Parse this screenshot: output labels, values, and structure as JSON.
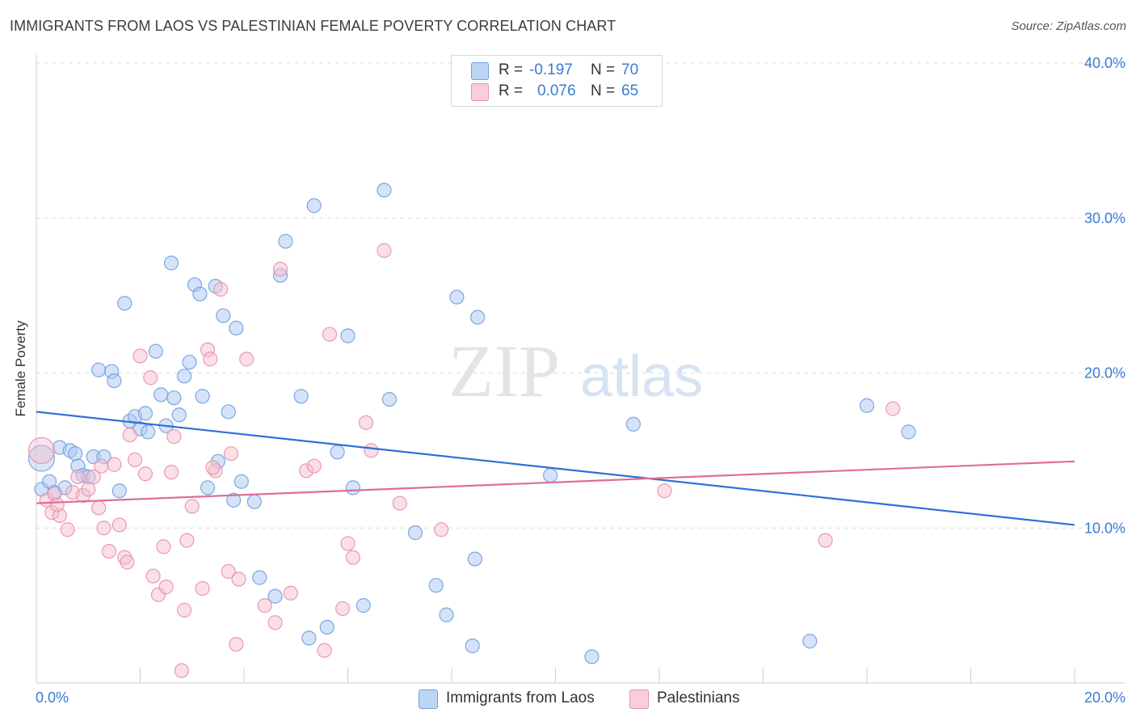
{
  "title": "IMMIGRANTS FROM LAOS VS PALESTINIAN FEMALE POVERTY CORRELATION CHART",
  "source": "Source: ZipAtlas.com",
  "watermark": {
    "zip": "ZIP",
    "atlas": "atlas"
  },
  "colors": {
    "blue_fill": "#a9c8f0",
    "blue_stroke": "#6f9fe0",
    "blue_line": "#2f6fd6",
    "pink_fill": "#f6bfd0",
    "pink_stroke": "#e88fae",
    "pink_line": "#e06c98",
    "value_text": "#3a7bd5",
    "grid": "#dedede"
  },
  "stats": [
    {
      "r_label": "R =",
      "r_value": "-0.197",
      "n_label": "N =",
      "n_value": "70"
    },
    {
      "r_label": "R =",
      "r_value": "0.076",
      "n_label": "N =",
      "n_value": "65"
    }
  ],
  "legend": [
    "Immigrants from Laos",
    "Palestinians"
  ],
  "chart_data": {
    "type": "scatter",
    "title": "IMMIGRANTS FROM LAOS VS PALESTINIAN FEMALE POVERTY CORRELATION CHART",
    "xlabel": "",
    "ylabel": "Female Poverty",
    "xlim": [
      0,
      20
    ],
    "ylim": [
      0,
      40
    ],
    "x_tick_labels": [
      "0.0%",
      "20.0%"
    ],
    "y_ticks": [
      10,
      20,
      30,
      40
    ],
    "y_tick_labels": [
      "10.0%",
      "20.0%",
      "30.0%",
      "40.0%"
    ],
    "x_minor_ticks": [
      2,
      4,
      6,
      8,
      10,
      12,
      14,
      16,
      18,
      20
    ],
    "grid": true,
    "legend_position": "bottom-center",
    "series": [
      {
        "name": "Immigrants from Laos",
        "color": "blue",
        "trend": {
          "x": [
            0,
            20
          ],
          "y": [
            17.5,
            10.2
          ]
        },
        "points": [
          [
            0.1,
            14.5
          ],
          [
            0.1,
            12.5
          ],
          [
            0.25,
            13.0
          ],
          [
            0.35,
            12.3
          ],
          [
            0.45,
            15.2
          ],
          [
            0.55,
            12.6
          ],
          [
            0.65,
            15.0
          ],
          [
            0.75,
            14.8
          ],
          [
            0.8,
            14.0
          ],
          [
            0.9,
            13.4
          ],
          [
            1.0,
            13.3
          ],
          [
            1.1,
            14.6
          ],
          [
            1.2,
            20.2
          ],
          [
            1.3,
            14.6
          ],
          [
            1.45,
            20.1
          ],
          [
            1.5,
            19.5
          ],
          [
            1.6,
            12.4
          ],
          [
            1.7,
            24.5
          ],
          [
            1.8,
            16.9
          ],
          [
            1.9,
            17.2
          ],
          [
            2.0,
            16.4
          ],
          [
            2.1,
            17.4
          ],
          [
            2.15,
            16.2
          ],
          [
            2.3,
            21.4
          ],
          [
            2.4,
            18.6
          ],
          [
            2.5,
            16.6
          ],
          [
            2.6,
            27.1
          ],
          [
            2.65,
            18.4
          ],
          [
            2.75,
            17.3
          ],
          [
            2.85,
            19.8
          ],
          [
            2.95,
            20.7
          ],
          [
            3.05,
            25.7
          ],
          [
            3.15,
            25.1
          ],
          [
            3.2,
            18.5
          ],
          [
            3.3,
            12.6
          ],
          [
            3.45,
            25.6
          ],
          [
            3.5,
            14.3
          ],
          [
            3.6,
            23.7
          ],
          [
            3.7,
            17.5
          ],
          [
            3.8,
            11.8
          ],
          [
            3.85,
            22.9
          ],
          [
            3.95,
            13.0
          ],
          [
            4.2,
            11.7
          ],
          [
            4.3,
            6.8
          ],
          [
            4.6,
            5.6
          ],
          [
            4.7,
            26.3
          ],
          [
            4.8,
            28.5
          ],
          [
            5.1,
            18.5
          ],
          [
            5.25,
            2.9
          ],
          [
            5.35,
            30.8
          ],
          [
            5.6,
            3.6
          ],
          [
            5.8,
            14.9
          ],
          [
            6.0,
            22.4
          ],
          [
            6.1,
            12.6
          ],
          [
            6.3,
            5.0
          ],
          [
            6.7,
            31.8
          ],
          [
            6.8,
            18.3
          ],
          [
            7.3,
            9.7
          ],
          [
            7.7,
            6.3
          ],
          [
            7.9,
            4.4
          ],
          [
            8.1,
            24.9
          ],
          [
            8.4,
            2.4
          ],
          [
            8.45,
            8.0
          ],
          [
            8.5,
            23.6
          ],
          [
            9.9,
            13.4
          ],
          [
            10.7,
            1.7
          ],
          [
            11.5,
            16.7
          ],
          [
            14.9,
            2.7
          ],
          [
            16.0,
            17.9
          ],
          [
            16.8,
            16.2
          ]
        ]
      },
      {
        "name": "Palestinians",
        "color": "pink",
        "trend": {
          "x": [
            0,
            20
          ],
          "y": [
            11.6,
            14.3
          ]
        },
        "points": [
          [
            0.1,
            15.0
          ],
          [
            0.2,
            11.8
          ],
          [
            0.3,
            11.0
          ],
          [
            0.35,
            12.2
          ],
          [
            0.45,
            10.8
          ],
          [
            0.6,
            9.9
          ],
          [
            0.7,
            12.3
          ],
          [
            0.8,
            13.3
          ],
          [
            0.9,
            12.1
          ],
          [
            1.0,
            12.5
          ],
          [
            1.1,
            13.3
          ],
          [
            1.2,
            11.3
          ],
          [
            1.3,
            10.0
          ],
          [
            1.4,
            8.5
          ],
          [
            1.5,
            14.1
          ],
          [
            1.6,
            10.2
          ],
          [
            1.7,
            8.1
          ],
          [
            1.75,
            7.8
          ],
          [
            1.8,
            16.0
          ],
          [
            1.9,
            14.4
          ],
          [
            2.0,
            21.1
          ],
          [
            2.1,
            13.5
          ],
          [
            2.2,
            19.7
          ],
          [
            2.25,
            6.9
          ],
          [
            2.35,
            5.7
          ],
          [
            2.45,
            8.8
          ],
          [
            2.5,
            6.2
          ],
          [
            2.6,
            13.6
          ],
          [
            2.65,
            15.9
          ],
          [
            2.8,
            0.8
          ],
          [
            2.85,
            4.7
          ],
          [
            2.9,
            9.2
          ],
          [
            3.0,
            11.4
          ],
          [
            3.2,
            6.1
          ],
          [
            3.3,
            21.5
          ],
          [
            3.35,
            20.9
          ],
          [
            3.45,
            13.7
          ],
          [
            3.55,
            25.4
          ],
          [
            3.7,
            7.2
          ],
          [
            3.75,
            14.8
          ],
          [
            3.85,
            2.5
          ],
          [
            3.9,
            6.7
          ],
          [
            4.05,
            20.9
          ],
          [
            4.4,
            5.0
          ],
          [
            4.6,
            3.9
          ],
          [
            4.7,
            26.7
          ],
          [
            4.9,
            5.8
          ],
          [
            5.2,
            13.7
          ],
          [
            5.35,
            14.0
          ],
          [
            5.55,
            2.1
          ],
          [
            5.65,
            22.5
          ],
          [
            5.9,
            4.8
          ],
          [
            6.0,
            9.0
          ],
          [
            6.1,
            8.1
          ],
          [
            6.35,
            16.8
          ],
          [
            6.45,
            15.0
          ],
          [
            6.7,
            27.9
          ],
          [
            7.0,
            11.6
          ],
          [
            7.8,
            9.9
          ],
          [
            12.1,
            12.4
          ],
          [
            15.2,
            9.2
          ],
          [
            16.5,
            17.7
          ],
          [
            0.4,
            11.5
          ],
          [
            1.25,
            14.0
          ],
          [
            3.4,
            13.9
          ]
        ]
      }
    ]
  }
}
